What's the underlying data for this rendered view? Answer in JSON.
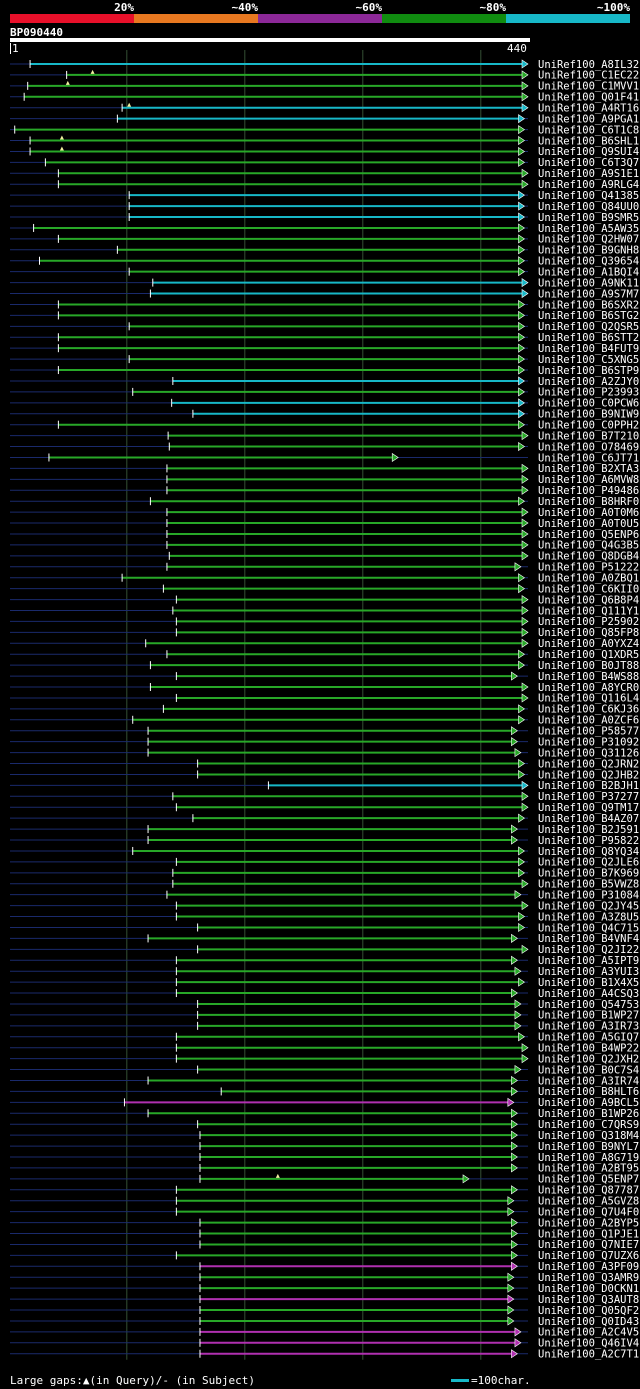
{
  "legend": {
    "labels": [
      "20%",
      "~40%",
      "~60%",
      "~80%",
      "~100%"
    ],
    "colors": [
      "#e8102a",
      "#e87820",
      "#8c2898",
      "#108c10",
      "#17b8c8"
    ]
  },
  "query": {
    "id": "BP090440",
    "ruler_start": "1",
    "ruler_end": "440"
  },
  "colors": {
    "cyan": "#17b8c8",
    "green": "#28a828",
    "magenta": "#b030b0",
    "navy": "#1a2a6c",
    "grid": "#355035"
  },
  "chart_data": {
    "type": "alignment",
    "title": "BP090440",
    "query_length": 440,
    "xlim": [
      1,
      440
    ],
    "gridlines": [
      100,
      200,
      300,
      400
    ],
    "hits": [
      {
        "id": "UniRef100_A8IL32",
        "start": 18,
        "end": 440,
        "color": "cyan"
      },
      {
        "id": "UniRef100_C1EC22",
        "start": 49,
        "end": 440,
        "color": "green"
      },
      {
        "id": "UniRef100_C1MVV1",
        "start": 16,
        "end": 440,
        "color": "green"
      },
      {
        "id": "UniRef100_Q01F41",
        "start": 13,
        "end": 440,
        "color": "green"
      },
      {
        "id": "UniRef100_A4RT16",
        "start": 96,
        "end": 440,
        "color": "cyan"
      },
      {
        "id": "UniRef100_A9PGA1",
        "start": 92,
        "end": 437,
        "color": "cyan"
      },
      {
        "id": "UniRef100_C6T1C8",
        "start": 5,
        "end": 437,
        "color": "green"
      },
      {
        "id": "UniRef100_B6SHL1",
        "start": 18,
        "end": 437,
        "color": "green"
      },
      {
        "id": "UniRef100_Q9SUI4",
        "start": 18,
        "end": 437,
        "color": "green"
      },
      {
        "id": "UniRef100_C6T3Q7",
        "start": 31,
        "end": 437,
        "color": "green"
      },
      {
        "id": "UniRef100_A9S1E1",
        "start": 42,
        "end": 440,
        "color": "green"
      },
      {
        "id": "UniRef100_A9RLG4",
        "start": 42,
        "end": 440,
        "color": "green"
      },
      {
        "id": "UniRef100_Q41385",
        "start": 102,
        "end": 437,
        "color": "cyan"
      },
      {
        "id": "UniRef100_Q84UU0",
        "start": 102,
        "end": 437,
        "color": "cyan"
      },
      {
        "id": "UniRef100_B9SMR5",
        "start": 102,
        "end": 437,
        "color": "cyan"
      },
      {
        "id": "UniRef100_A5AW35",
        "start": 21,
        "end": 437,
        "color": "green"
      },
      {
        "id": "UniRef100_Q2HW07",
        "start": 42,
        "end": 437,
        "color": "green"
      },
      {
        "id": "UniRef100_B9GNH8",
        "start": 92,
        "end": 437,
        "color": "green"
      },
      {
        "id": "UniRef100_Q39654",
        "start": 26,
        "end": 437,
        "color": "green"
      },
      {
        "id": "UniRef100_A1BQI4",
        "start": 102,
        "end": 437,
        "color": "green"
      },
      {
        "id": "UniRef100_A9NK11",
        "start": 122,
        "end": 440,
        "color": "cyan"
      },
      {
        "id": "UniRef100_A9S7M7",
        "start": 120,
        "end": 440,
        "color": "cyan"
      },
      {
        "id": "UniRef100_B6SXR2",
        "start": 42,
        "end": 437,
        "color": "green"
      },
      {
        "id": "UniRef100_B6STG2",
        "start": 42,
        "end": 437,
        "color": "green"
      },
      {
        "id": "UniRef100_Q2QSR5",
        "start": 102,
        "end": 437,
        "color": "green"
      },
      {
        "id": "UniRef100_B6STT2",
        "start": 42,
        "end": 437,
        "color": "green"
      },
      {
        "id": "UniRef100_B4FUT9",
        "start": 42,
        "end": 437,
        "color": "green"
      },
      {
        "id": "UniRef100_C5XNG5",
        "start": 102,
        "end": 437,
        "color": "green"
      },
      {
        "id": "UniRef100_B6STP9",
        "start": 42,
        "end": 437,
        "color": "green"
      },
      {
        "id": "UniRef100_A2ZJY0",
        "start": 139,
        "end": 437,
        "color": "cyan"
      },
      {
        "id": "UniRef100_P23993",
        "start": 105,
        "end": 437,
        "color": "green"
      },
      {
        "id": "UniRef100_C0PCW6",
        "start": 138,
        "end": 437,
        "color": "cyan"
      },
      {
        "id": "UniRef100_B9NIW9",
        "start": 156,
        "end": 437,
        "color": "cyan"
      },
      {
        "id": "UniRef100_C0PPH2",
        "start": 42,
        "end": 437,
        "color": "green"
      },
      {
        "id": "UniRef100_B7T210",
        "start": 135,
        "end": 440,
        "color": "green"
      },
      {
        "id": "UniRef100_O78469",
        "start": 136,
        "end": 437,
        "color": "green"
      },
      {
        "id": "UniRef100_C6JT71",
        "start": 34,
        "end": 330,
        "color": "green"
      },
      {
        "id": "UniRef100_B2XTA3",
        "start": 134,
        "end": 440,
        "color": "green"
      },
      {
        "id": "UniRef100_A6MVW8",
        "start": 134,
        "end": 440,
        "color": "green"
      },
      {
        "id": "UniRef100_P49486",
        "start": 134,
        "end": 440,
        "color": "green"
      },
      {
        "id": "UniRef100_B8HRF0",
        "start": 120,
        "end": 437,
        "color": "green"
      },
      {
        "id": "UniRef100_A0T0M6",
        "start": 134,
        "end": 440,
        "color": "green"
      },
      {
        "id": "UniRef100_A0T0U5",
        "start": 134,
        "end": 440,
        "color": "green"
      },
      {
        "id": "UniRef100_Q5ENP6",
        "start": 134,
        "end": 440,
        "color": "green"
      },
      {
        "id": "UniRef100_Q4G3B5",
        "start": 134,
        "end": 440,
        "color": "green"
      },
      {
        "id": "UniRef100_Q8DGB4",
        "start": 136,
        "end": 440,
        "color": "green"
      },
      {
        "id": "UniRef100_P51222",
        "start": 134,
        "end": 434,
        "color": "green"
      },
      {
        "id": "UniRef100_A0ZBQ1",
        "start": 96,
        "end": 437,
        "color": "green"
      },
      {
        "id": "UniRef100_C6KII0",
        "start": 131,
        "end": 437,
        "color": "green"
      },
      {
        "id": "UniRef100_Q6B8P4",
        "start": 142,
        "end": 440,
        "color": "green"
      },
      {
        "id": "UniRef100_Q111Y1",
        "start": 139,
        "end": 440,
        "color": "green"
      },
      {
        "id": "UniRef100_P25902",
        "start": 142,
        "end": 440,
        "color": "green"
      },
      {
        "id": "UniRef100_Q85FP8",
        "start": 142,
        "end": 440,
        "color": "green"
      },
      {
        "id": "UniRef100_A0YXZ4",
        "start": 116,
        "end": 440,
        "color": "green"
      },
      {
        "id": "UniRef100_Q1XDR5",
        "start": 134,
        "end": 437,
        "color": "green"
      },
      {
        "id": "UniRef100_B0JT88",
        "start": 120,
        "end": 437,
        "color": "green"
      },
      {
        "id": "UniRef100_B4WS88",
        "start": 142,
        "end": 431,
        "color": "green"
      },
      {
        "id": "UniRef100_A8YCR0",
        "start": 120,
        "end": 440,
        "color": "green"
      },
      {
        "id": "UniRef100_Q116L4",
        "start": 142,
        "end": 440,
        "color": "green"
      },
      {
        "id": "UniRef100_C6KJ36",
        "start": 131,
        "end": 437,
        "color": "green"
      },
      {
        "id": "UniRef100_A0ZCF6",
        "start": 105,
        "end": 437,
        "color": "green"
      },
      {
        "id": "UniRef100_P58577",
        "start": 118,
        "end": 431,
        "color": "green"
      },
      {
        "id": "UniRef100_P31092",
        "start": 118,
        "end": 431,
        "color": "green"
      },
      {
        "id": "UniRef100_Q31126",
        "start": 118,
        "end": 434,
        "color": "green"
      },
      {
        "id": "UniRef100_Q2JRN2",
        "start": 160,
        "end": 437,
        "color": "green"
      },
      {
        "id": "UniRef100_Q2JHB2",
        "start": 160,
        "end": 437,
        "color": "green"
      },
      {
        "id": "UniRef100_B2BJH1",
        "start": 220,
        "end": 440,
        "color": "cyan"
      },
      {
        "id": "UniRef100_P37277",
        "start": 139,
        "end": 440,
        "color": "green"
      },
      {
        "id": "UniRef100_Q9TM17",
        "start": 142,
        "end": 440,
        "color": "green"
      },
      {
        "id": "UniRef100_B4AZ07",
        "start": 156,
        "end": 437,
        "color": "green"
      },
      {
        "id": "UniRef100_B2J591",
        "start": 118,
        "end": 431,
        "color": "green"
      },
      {
        "id": "UniRef100_P95822",
        "start": 118,
        "end": 431,
        "color": "green"
      },
      {
        "id": "UniRef100_Q8YQ34",
        "start": 105,
        "end": 437,
        "color": "green"
      },
      {
        "id": "UniRef100_Q2JLE6",
        "start": 142,
        "end": 437,
        "color": "green"
      },
      {
        "id": "UniRef100_B7K969",
        "start": 139,
        "end": 437,
        "color": "green"
      },
      {
        "id": "UniRef100_B5VWZ8",
        "start": 139,
        "end": 440,
        "color": "green"
      },
      {
        "id": "UniRef100_P31084",
        "start": 134,
        "end": 434,
        "color": "green"
      },
      {
        "id": "UniRef100_Q2JY45",
        "start": 142,
        "end": 440,
        "color": "green"
      },
      {
        "id": "UniRef100_A3Z8U5",
        "start": 142,
        "end": 437,
        "color": "green"
      },
      {
        "id": "UniRef100_Q4C715",
        "start": 160,
        "end": 437,
        "color": "green"
      },
      {
        "id": "UniRef100_B4VNF4",
        "start": 118,
        "end": 431,
        "color": "green"
      },
      {
        "id": "UniRef100_Q2JI22",
        "start": 160,
        "end": 440,
        "color": "green"
      },
      {
        "id": "UniRef100_A5IPT9",
        "start": 142,
        "end": 431,
        "color": "green"
      },
      {
        "id": "UniRef100_A3YUI3",
        "start": 142,
        "end": 434,
        "color": "green"
      },
      {
        "id": "UniRef100_B1X4X5",
        "start": 142,
        "end": 437,
        "color": "green"
      },
      {
        "id": "UniRef100_A4CSQ3",
        "start": 142,
        "end": 431,
        "color": "green"
      },
      {
        "id": "UniRef100_Q54753",
        "start": 160,
        "end": 434,
        "color": "green"
      },
      {
        "id": "UniRef100_B1WP27",
        "start": 160,
        "end": 434,
        "color": "green"
      },
      {
        "id": "UniRef100_A3IR73",
        "start": 160,
        "end": 434,
        "color": "green"
      },
      {
        "id": "UniRef100_A5GIQ7",
        "start": 142,
        "end": 437,
        "color": "green"
      },
      {
        "id": "UniRef100_B4WP22",
        "start": 142,
        "end": 440,
        "color": "green"
      },
      {
        "id": "UniRef100_Q2JXH2",
        "start": 142,
        "end": 440,
        "color": "green"
      },
      {
        "id": "UniRef100_B0C7S4",
        "start": 160,
        "end": 434,
        "color": "green"
      },
      {
        "id": "UniRef100_A3IR74",
        "start": 118,
        "end": 431,
        "color": "green"
      },
      {
        "id": "UniRef100_B8HLT6",
        "start": 180,
        "end": 431,
        "color": "green"
      },
      {
        "id": "UniRef100_A9BCL5",
        "start": 98,
        "end": 428,
        "color": "magenta"
      },
      {
        "id": "UniRef100_B1WP26",
        "start": 118,
        "end": 431,
        "color": "green"
      },
      {
        "id": "UniRef100_C7QRS9",
        "start": 160,
        "end": 431,
        "color": "green"
      },
      {
        "id": "UniRef100_Q318M4",
        "start": 162,
        "end": 431,
        "color": "green"
      },
      {
        "id": "UniRef100_B9NYL7",
        "start": 162,
        "end": 431,
        "color": "green"
      },
      {
        "id": "UniRef100_A8G719",
        "start": 162,
        "end": 431,
        "color": "green"
      },
      {
        "id": "UniRef100_A2BT95",
        "start": 162,
        "end": 431,
        "color": "green"
      },
      {
        "id": "UniRef100_Q5ENP7",
        "start": 162,
        "end": 390,
        "color": "green"
      },
      {
        "id": "UniRef100_Q87787",
        "start": 142,
        "end": 431,
        "color": "green"
      },
      {
        "id": "UniRef100_A5GVZ8",
        "start": 142,
        "end": 428,
        "color": "green"
      },
      {
        "id": "UniRef100_Q7U4F0",
        "start": 142,
        "end": 428,
        "color": "green"
      },
      {
        "id": "UniRef100_A2BYP5",
        "start": 162,
        "end": 431,
        "color": "green"
      },
      {
        "id": "UniRef100_Q1PJE1",
        "start": 162,
        "end": 431,
        "color": "green"
      },
      {
        "id": "UniRef100_Q7NIE7",
        "start": 162,
        "end": 431,
        "color": "green"
      },
      {
        "id": "UniRef100_Q7UZX6",
        "start": 142,
        "end": 431,
        "color": "green"
      },
      {
        "id": "UniRef100_A3PF09",
        "start": 162,
        "end": 431,
        "color": "magenta"
      },
      {
        "id": "UniRef100_Q3AMR9",
        "start": 162,
        "end": 428,
        "color": "green"
      },
      {
        "id": "UniRef100_D0CKN1",
        "start": 162,
        "end": 428,
        "color": "green"
      },
      {
        "id": "UniRef100_Q3AUT8",
        "start": 162,
        "end": 428,
        "color": "magenta"
      },
      {
        "id": "UniRef100_Q05QF2",
        "start": 162,
        "end": 428,
        "color": "green"
      },
      {
        "id": "UniRef100_Q0ID43",
        "start": 162,
        "end": 428,
        "color": "green"
      },
      {
        "id": "UniRef100_A2C4V5",
        "start": 162,
        "end": 434,
        "color": "magenta"
      },
      {
        "id": "UniRef100_Q46IV4",
        "start": 162,
        "end": 434,
        "color": "magenta"
      },
      {
        "id": "UniRef100_A2C7T1",
        "start": 162,
        "end": 431,
        "color": "magenta"
      }
    ],
    "query_gap_marks": [
      {
        "hit": "UniRef100_C1EC22",
        "pos": 71
      },
      {
        "hit": "UniRef100_C1MVV1",
        "pos": 50
      },
      {
        "hit": "UniRef100_A4RT16",
        "pos": 102
      },
      {
        "hit": "UniRef100_B6SHL1",
        "pos": 45
      },
      {
        "hit": "UniRef100_Q9SUI4",
        "pos": 45
      },
      {
        "hit": "UniRef100_Q5ENP7",
        "pos": 228
      }
    ]
  },
  "footer": {
    "gaps_text": "Large gaps:▲(in Query)/- (in Subject)",
    "scale_text": "=100char."
  }
}
